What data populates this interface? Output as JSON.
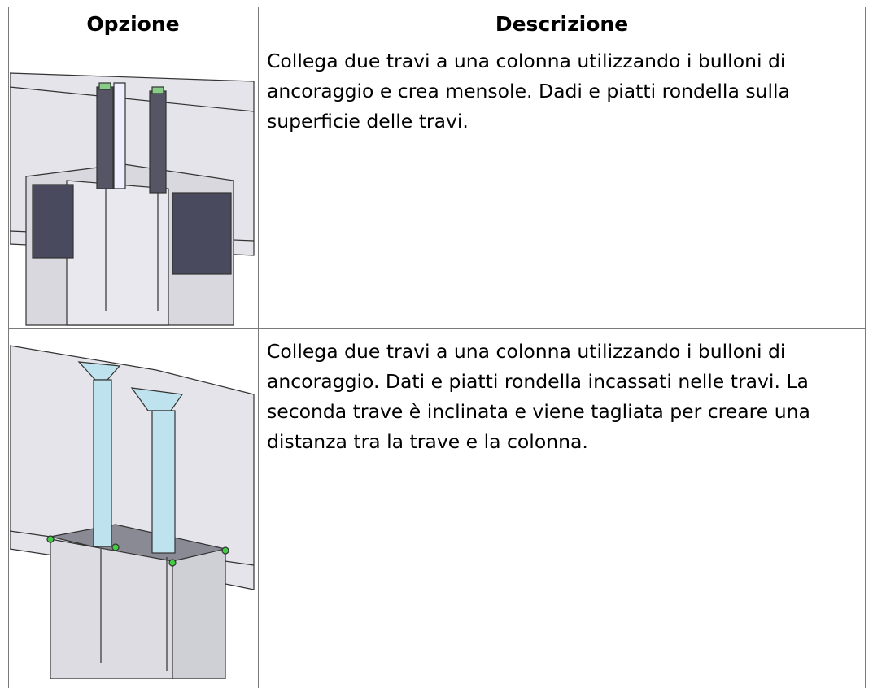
{
  "table": {
    "headers": [
      "Opzione",
      "Descrizione"
    ],
    "rows": [
      [
        "Collega due travi a una colonna utilizzando i bulloni di ancoraggio e crea mensole. Dadi e piatti rondella sulla superficie delle travi."
      ],
      [
        "Collega due travi a una colonna utilizzando i bulloni di ancoraggio. Dati e piatti rondella incassati nelle travi. La seconda trave è inclinata e viene tagliata per creare una distanza tra la trave e la colonna."
      ]
    ]
  }
}
